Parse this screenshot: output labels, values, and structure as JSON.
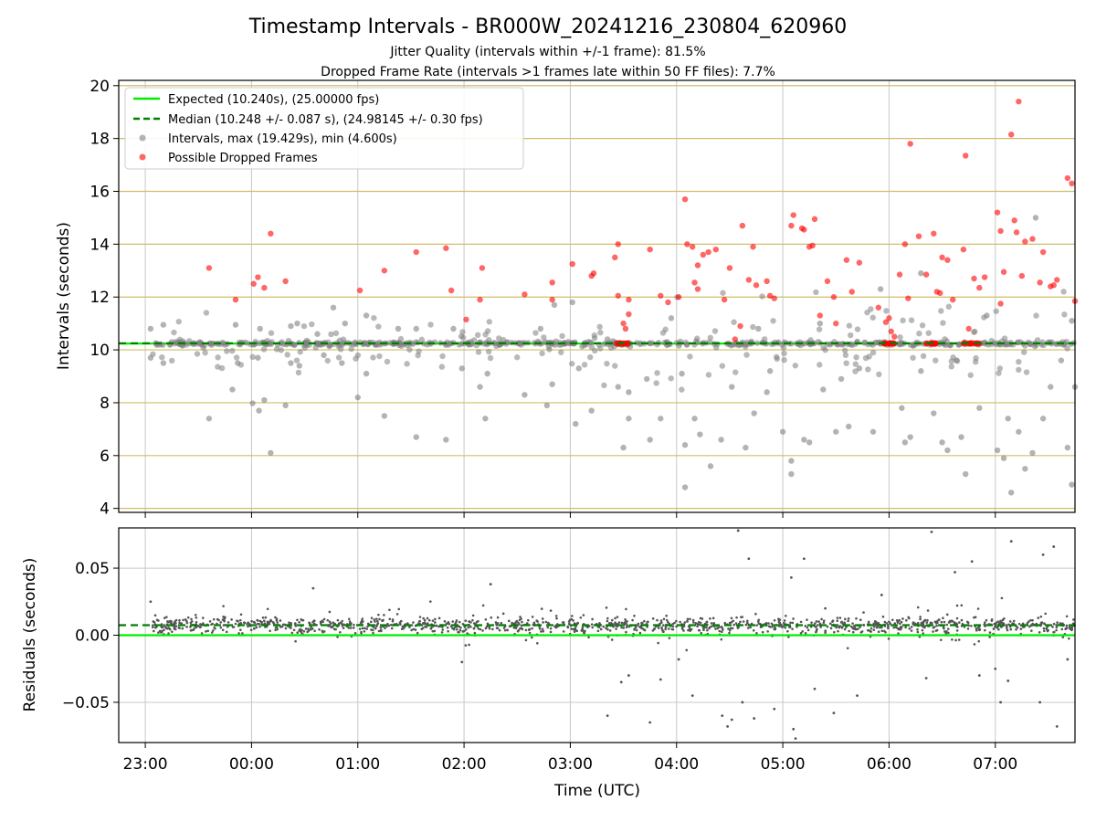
{
  "title": "Timestamp Intervals - BR000W_20241216_230804_620960",
  "subtitle1": "Jitter Quality (intervals within +/-1 frame): 81.5%",
  "subtitle2": "Dropped Frame Rate (intervals >1 frames late within 50 FF files): 7.7%",
  "colors": {
    "expected": "#00ee00",
    "median": "#007f00",
    "intervals": "#808080",
    "dropped": "#ff0000",
    "hgrid": "#d2bd6a",
    "vgrid": "#c8c8c8",
    "residuals": "#555555"
  },
  "chart_data": [
    {
      "type": "scatter",
      "ylabel": "Intervals (seconds)",
      "ylim": [
        3.85,
        20.2
      ],
      "xlim_hours": [
        -1.25,
        7.75
      ],
      "yticks": [
        4,
        6,
        8,
        10,
        12,
        14,
        16,
        18,
        20
      ],
      "ytick_labels": [
        "4",
        "6",
        "8",
        "10",
        "12",
        "14",
        "16",
        "18",
        "20"
      ],
      "grid": true,
      "legend_position": "top-left",
      "legend": [
        "Expected (10.240s), (25.00000 fps)",
        "Median (10.248 +/- 0.087 s), (24.98145 +/- 0.30 fps)",
        "Intervals, max (19.429s), min (4.600s)",
        "Possible Dropped Frames"
      ],
      "expected": 10.24,
      "median": 10.248,
      "intervals_sample": [
        [
          -0.95,
          10.8
        ],
        [
          -0.95,
          9.7
        ],
        [
          -0.83,
          10.95
        ],
        [
          -0.83,
          9.5
        ],
        [
          -0.75,
          10.3
        ],
        [
          -0.4,
          7.4
        ],
        [
          -0.15,
          10.95
        ],
        [
          -0.13,
          9.5
        ],
        [
          -0.18,
          8.5
        ],
        [
          0.01,
          7.98
        ],
        [
          0.07,
          7.7
        ],
        [
          0.08,
          10.8
        ],
        [
          0.06,
          9.7
        ],
        [
          0.12,
          8.1
        ],
        [
          0.18,
          6.1
        ],
        [
          0.32,
          7.9
        ],
        [
          0.37,
          10.9
        ],
        [
          0.37,
          9.5
        ],
        [
          0.43,
          11.0
        ],
        [
          0.45,
          9.4
        ],
        [
          0.52,
          10.35
        ],
        [
          0.62,
          10.6
        ],
        [
          0.68,
          9.8
        ],
        [
          0.77,
          11.6
        ],
        [
          0.88,
          11.0
        ],
        [
          0.85,
          9.5
        ],
        [
          1.0,
          8.2
        ],
        [
          1.08,
          11.3
        ],
        [
          1.08,
          9.1
        ],
        [
          1.25,
          7.5
        ],
        [
          1.38,
          10.8
        ],
        [
          1.55,
          6.7
        ],
        [
          1.55,
          10.8
        ],
        [
          1.83,
          6.6
        ],
        [
          1.9,
          10.8
        ],
        [
          1.98,
          9.3
        ],
        [
          2.15,
          8.6
        ],
        [
          2.2,
          7.4
        ],
        [
          2.22,
          9.1
        ],
        [
          2.57,
          8.3
        ],
        [
          2.72,
          10.8
        ],
        [
          2.83,
          8.7
        ],
        [
          2.85,
          11.7
        ],
        [
          2.78,
          7.9
        ],
        [
          3.02,
          11.8
        ],
        [
          3.05,
          7.2
        ],
        [
          3.08,
          9.3
        ],
        [
          3.2,
          7.7
        ],
        [
          3.35,
          10.4
        ],
        [
          3.45,
          8.6
        ],
        [
          3.55,
          8.4
        ],
        [
          3.5,
          6.3
        ],
        [
          3.55,
          7.4
        ],
        [
          3.72,
          8.9
        ],
        [
          3.75,
          6.6
        ],
        [
          3.85,
          7.4
        ],
        [
          3.95,
          11.2
        ],
        [
          4.05,
          9.1
        ],
        [
          4.08,
          4.8
        ],
        [
          4.08,
          6.4
        ],
        [
          4.17,
          7.4
        ],
        [
          4.22,
          6.8
        ],
        [
          4.32,
          5.6
        ],
        [
          4.42,
          6.6
        ],
        [
          4.52,
          8.6
        ],
        [
          4.65,
          6.3
        ],
        [
          4.73,
          7.6
        ],
        [
          4.77,
          10.8
        ],
        [
          4.85,
          8.4
        ],
        [
          4.88,
          9.2
        ],
        [
          5.0,
          6.9
        ],
        [
          5.08,
          5.3
        ],
        [
          5.08,
          5.8
        ],
        [
          5.2,
          6.6
        ],
        [
          5.25,
          6.5
        ],
        [
          5.35,
          11.0
        ],
        [
          5.38,
          8.5
        ],
        [
          5.5,
          6.9
        ],
        [
          5.55,
          8.9
        ],
        [
          5.62,
          7.1
        ],
        [
          5.72,
          9.3
        ],
        [
          5.85,
          6.9
        ],
        [
          5.92,
          12.3
        ],
        [
          6.12,
          7.8
        ],
        [
          6.15,
          6.5
        ],
        [
          6.2,
          6.7
        ],
        [
          6.3,
          9.2
        ],
        [
          6.3,
          12.9
        ],
        [
          6.42,
          7.6
        ],
        [
          6.5,
          6.5
        ],
        [
          6.55,
          6.2
        ],
        [
          6.68,
          6.7
        ],
        [
          6.72,
          5.3
        ],
        [
          6.85,
          7.8
        ],
        [
          6.92,
          11.3
        ],
        [
          7.02,
          6.2
        ],
        [
          7.08,
          5.9
        ],
        [
          7.12,
          7.4
        ],
        [
          7.15,
          4.6
        ],
        [
          7.22,
          6.9
        ],
        [
          7.28,
          5.5
        ],
        [
          7.35,
          6.1
        ],
        [
          7.38,
          15.0
        ],
        [
          7.45,
          7.4
        ],
        [
          7.52,
          8.6
        ],
        [
          7.62,
          9.6
        ],
        [
          7.68,
          6.3
        ],
        [
          7.72,
          4.9
        ],
        [
          7.72,
          11.1
        ],
        [
          7.75,
          8.6
        ]
      ],
      "dropped_sample": [
        [
          -0.4,
          13.1
        ],
        [
          -0.15,
          11.9
        ],
        [
          0.02,
          12.5
        ],
        [
          0.06,
          12.75
        ],
        [
          0.12,
          12.35
        ],
        [
          0.18,
          14.4
        ],
        [
          0.32,
          12.6
        ],
        [
          1.02,
          12.25
        ],
        [
          1.25,
          13.0
        ],
        [
          1.55,
          13.7
        ],
        [
          1.83,
          13.85
        ],
        [
          1.88,
          12.25
        ],
        [
          2.02,
          11.15
        ],
        [
          2.15,
          11.9
        ],
        [
          2.17,
          13.1
        ],
        [
          2.57,
          12.1
        ],
        [
          2.83,
          12.55
        ],
        [
          2.83,
          11.9
        ],
        [
          3.02,
          13.25
        ],
        [
          3.2,
          12.8
        ],
        [
          3.22,
          12.9
        ],
        [
          3.42,
          13.5
        ],
        [
          3.45,
          14.0
        ],
        [
          3.45,
          12.05
        ],
        [
          3.5,
          11.0
        ],
        [
          3.52,
          10.8
        ],
        [
          3.55,
          11.35
        ],
        [
          3.55,
          11.9
        ],
        [
          3.75,
          13.8
        ],
        [
          3.85,
          12.05
        ],
        [
          3.92,
          11.8
        ],
        [
          4.02,
          12.0
        ],
        [
          4.08,
          15.7
        ],
        [
          4.1,
          14.0
        ],
        [
          4.15,
          13.9
        ],
        [
          4.17,
          12.55
        ],
        [
          4.2,
          12.3
        ],
        [
          4.2,
          13.2
        ],
        [
          4.25,
          13.6
        ],
        [
          4.3,
          13.7
        ],
        [
          4.37,
          13.8
        ],
        [
          4.45,
          11.9
        ],
        [
          4.5,
          13.1
        ],
        [
          4.55,
          10.4
        ],
        [
          4.6,
          10.9
        ],
        [
          4.62,
          14.7
        ],
        [
          4.68,
          12.65
        ],
        [
          4.72,
          13.9
        ],
        [
          4.75,
          12.45
        ],
        [
          4.85,
          12.6
        ],
        [
          4.88,
          12.05
        ],
        [
          4.92,
          11.95
        ],
        [
          5.08,
          14.7
        ],
        [
          5.1,
          15.1
        ],
        [
          5.18,
          14.6
        ],
        [
          5.2,
          14.55
        ],
        [
          5.25,
          13.9
        ],
        [
          5.28,
          13.95
        ],
        [
          5.3,
          14.95
        ],
        [
          5.35,
          11.3
        ],
        [
          5.42,
          12.6
        ],
        [
          5.48,
          12.0
        ],
        [
          5.5,
          11.0
        ],
        [
          5.6,
          13.4
        ],
        [
          5.65,
          12.2
        ],
        [
          5.72,
          13.3
        ],
        [
          5.9,
          11.6
        ],
        [
          5.97,
          11.05
        ],
        [
          6.0,
          11.2
        ],
        [
          6.02,
          10.7
        ],
        [
          6.05,
          10.5
        ],
        [
          6.1,
          12.85
        ],
        [
          6.15,
          14.0
        ],
        [
          6.18,
          11.95
        ],
        [
          6.2,
          17.8
        ],
        [
          6.28,
          14.3
        ],
        [
          6.35,
          12.85
        ],
        [
          6.42,
          14.4
        ],
        [
          6.45,
          12.2
        ],
        [
          6.48,
          12.15
        ],
        [
          6.5,
          13.5
        ],
        [
          6.55,
          13.4
        ],
        [
          6.6,
          11.9
        ],
        [
          6.7,
          13.8
        ],
        [
          6.72,
          17.35
        ],
        [
          6.75,
          10.8
        ],
        [
          6.8,
          12.7
        ],
        [
          6.85,
          12.35
        ],
        [
          6.9,
          12.75
        ],
        [
          7.02,
          15.2
        ],
        [
          7.05,
          14.5
        ],
        [
          7.05,
          11.75
        ],
        [
          7.08,
          12.95
        ],
        [
          7.15,
          18.15
        ],
        [
          7.18,
          14.9
        ],
        [
          7.2,
          14.45
        ],
        [
          7.22,
          19.4
        ],
        [
          7.25,
          12.8
        ],
        [
          7.28,
          14.1
        ],
        [
          7.35,
          14.2
        ],
        [
          7.42,
          12.55
        ],
        [
          7.45,
          13.7
        ],
        [
          7.52,
          12.4
        ],
        [
          7.55,
          12.45
        ],
        [
          7.58,
          12.65
        ],
        [
          7.68,
          16.5
        ],
        [
          7.72,
          16.3
        ],
        [
          7.75,
          11.85
        ]
      ]
    },
    {
      "type": "scatter",
      "xlabel": "Time (UTC)",
      "ylabel": "Residuals (seconds)",
      "ylim": [
        -0.08,
        0.08
      ],
      "yticks": [
        -0.05,
        0.0,
        0.05
      ],
      "ytick_labels": [
        "−0.05",
        "0.00",
        "0.05"
      ],
      "xticks_hours": [
        -1,
        0,
        1,
        2,
        3,
        4,
        5,
        6,
        7
      ],
      "xtick_labels": [
        "23:00",
        "00:00",
        "01:00",
        "02:00",
        "03:00",
        "04:00",
        "05:00",
        "06:00",
        "07:00"
      ],
      "grid": true,
      "expected": 0.0,
      "median": 0.0075,
      "outliers_sample": [
        [
          -0.95,
          0.025
        ],
        [
          0.58,
          0.035
        ],
        [
          1.98,
          -0.02
        ],
        [
          2.25,
          0.038
        ],
        [
          3.35,
          -0.06
        ],
        [
          3.48,
          -0.035
        ],
        [
          3.55,
          -0.03
        ],
        [
          3.75,
          -0.065
        ],
        [
          3.85,
          -0.033
        ],
        [
          4.02,
          -0.018
        ],
        [
          4.15,
          -0.045
        ],
        [
          4.43,
          -0.06
        ],
        [
          4.48,
          -0.068
        ],
        [
          4.52,
          -0.063
        ],
        [
          4.62,
          -0.05
        ],
        [
          4.58,
          0.078
        ],
        [
          4.68,
          0.057
        ],
        [
          4.73,
          -0.062
        ],
        [
          4.92,
          -0.055
        ],
        [
          5.08,
          0.043
        ],
        [
          5.1,
          -0.07
        ],
        [
          5.12,
          -0.077
        ],
        [
          5.2,
          0.057
        ],
        [
          5.3,
          -0.04
        ],
        [
          5.4,
          0.02
        ],
        [
          5.48,
          -0.058
        ],
        [
          5.7,
          -0.045
        ],
        [
          5.93,
          0.03
        ],
        [
          6.35,
          -0.032
        ],
        [
          6.4,
          0.077
        ],
        [
          6.62,
          0.047
        ],
        [
          6.78,
          0.055
        ],
        [
          6.85,
          -0.03
        ],
        [
          7.0,
          -0.025
        ],
        [
          7.05,
          -0.05
        ],
        [
          7.12,
          -0.034
        ],
        [
          7.15,
          0.07
        ],
        [
          7.42,
          -0.05
        ],
        [
          7.45,
          0.06
        ],
        [
          7.55,
          0.066
        ],
        [
          7.58,
          -0.068
        ],
        [
          7.68,
          -0.018
        ]
      ]
    }
  ]
}
